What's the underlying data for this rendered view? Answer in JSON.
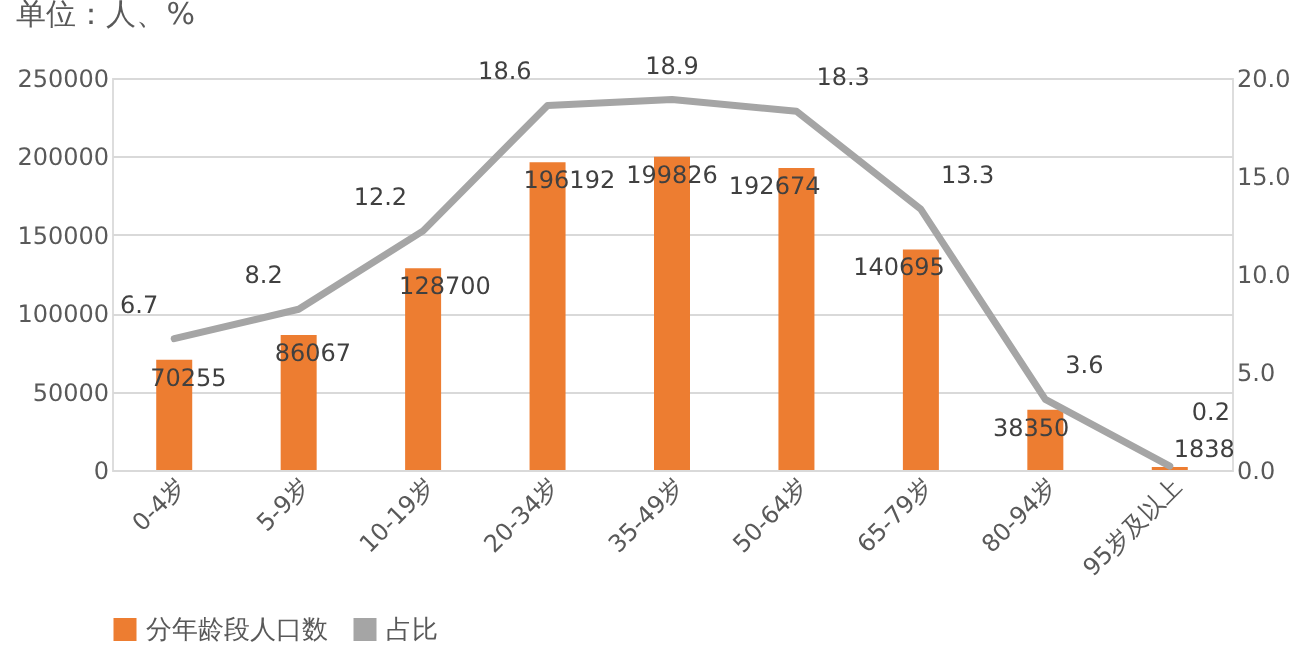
{
  "chart_data": {
    "type": "bar",
    "title": "单位：人、%",
    "categories": [
      "0-4岁",
      "5-9岁",
      "10-19岁",
      "20-34岁",
      "35-49岁",
      "50-64岁",
      "65-79岁",
      "80-94岁",
      "95岁及以上"
    ],
    "series": [
      {
        "name": "分年龄段人口数",
        "color": "#ed7d31",
        "values": [
          70255,
          86067,
          128700,
          196192,
          199826,
          192674,
          140695,
          38350,
          1838
        ]
      },
      {
        "name": "占比",
        "type": "line",
        "axis": "y2",
        "color": "#a5a5a5",
        "values": [
          6.7,
          8.2,
          12.2,
          18.6,
          18.9,
          18.3,
          13.3,
          3.6,
          0.2
        ]
      }
    ],
    "ylim": [
      0,
      250000
    ],
    "yticks": [
      0,
      50000,
      100000,
      150000,
      200000,
      250000
    ],
    "y2lim": [
      0,
      20
    ],
    "y2ticks": [
      {
        "value": 0,
        "label": "0.0"
      },
      {
        "value": 5,
        "label": "5.0"
      },
      {
        "value": 10,
        "label": "10.0"
      },
      {
        "value": 15,
        "label": "15.0"
      },
      {
        "value": 20,
        "label": "20.0"
      }
    ],
    "data_labels": true,
    "grid": "y",
    "legend": "bottom",
    "marker": "none",
    "line_style": "solid"
  }
}
